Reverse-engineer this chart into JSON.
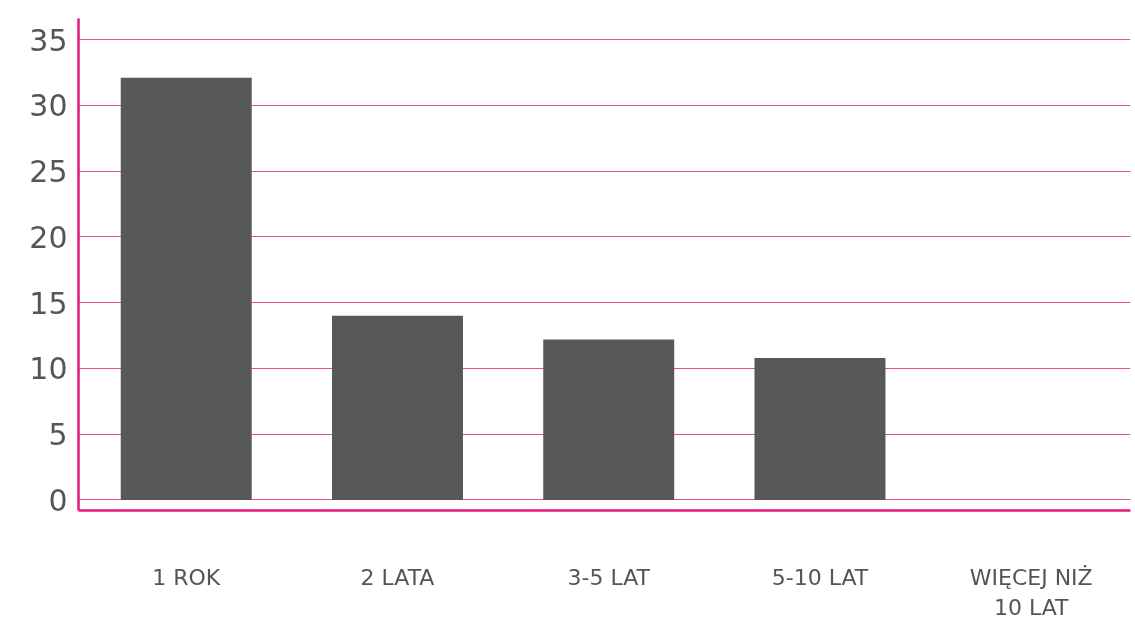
{
  "chart_data": {
    "type": "bar",
    "categories": [
      "1 ROK",
      "2 LATA",
      "3-5 LAT",
      "5-10 LAT",
      "WIĘCEJ NIŻ\n10 LAT"
    ],
    "values": [
      32.1,
      14.0,
      12.2,
      10.8,
      0
    ],
    "color": "#58585a",
    "ylim": [
      -0.8,
      36.6
    ],
    "yticks": [
      0,
      5,
      10,
      15,
      20,
      25,
      30,
      35
    ],
    "grid": "y"
  }
}
